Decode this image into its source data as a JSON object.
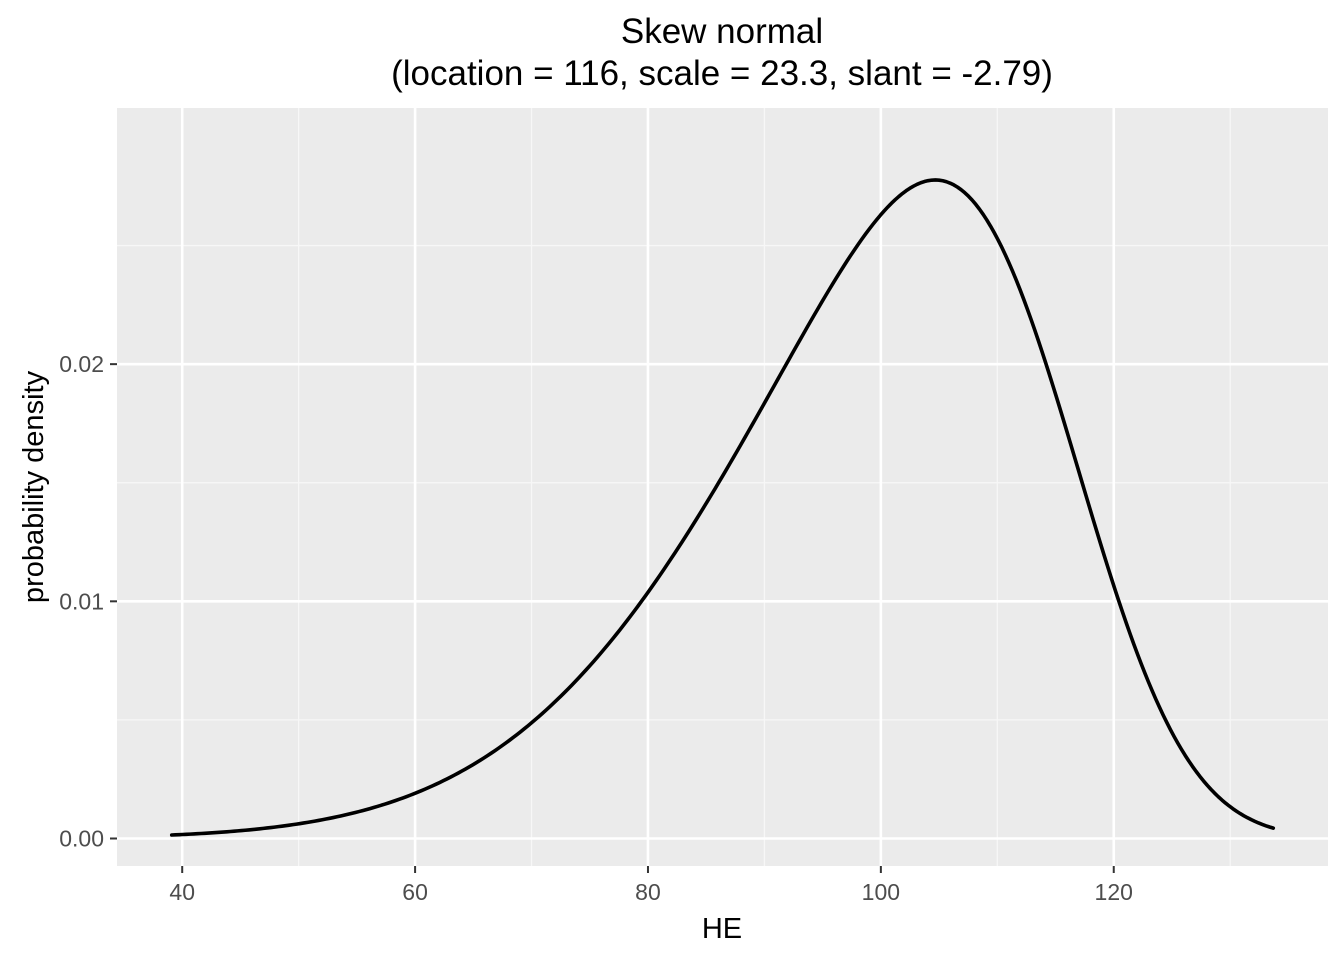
{
  "chart_data": {
    "type": "line",
    "title": "Skew normal",
    "subtitle": "(location = 116, scale = 23.3, slant = -2.79)",
    "xlabel": "HE",
    "ylabel": "probability density",
    "distribution": {
      "name": "skew normal",
      "location": 116,
      "scale": 23.3,
      "slant": -2.79
    },
    "x_range": [
      39.1,
      133.7
    ],
    "xlim": [
      34.4,
      138.4
    ],
    "ylim": [
      -0.00116,
      0.0308
    ],
    "x_ticks": [
      40,
      60,
      80,
      100,
      120
    ],
    "y_ticks": [
      0.0,
      0.01,
      0.02
    ],
    "x_tick_labels": [
      "40",
      "60",
      "80",
      "100",
      "120"
    ],
    "y_tick_labels": [
      "0.00",
      "0.01",
      "0.02"
    ],
    "series": [
      {
        "x": [
          39.1,
          45,
          50,
          55,
          60,
          65,
          70,
          75,
          80,
          85,
          90,
          95,
          100,
          104.4,
          108,
          112,
          115,
          118,
          120,
          123,
          126,
          129,
          131,
          133.7
        ],
        "y": [
          0.0002,
          0.0004,
          0.0006,
          0.0011,
          0.002,
          0.0033,
          0.0051,
          0.0077,
          0.0108,
          0.0146,
          0.0189,
          0.0233,
          0.0267,
          0.0278,
          0.0271,
          0.0239,
          0.0196,
          0.0138,
          0.0101,
          0.0055,
          0.0025,
          0.0011,
          0.0006,
          0.0004
        ],
        "color": "#000000"
      }
    ],
    "grid": true,
    "legend": "none",
    "colors": {
      "panel_background": "#ebebeb",
      "grid_major": "#ffffff",
      "grid_minor": "#f7f7f7",
      "line": "#000000",
      "tick_text": "#4d4d4d",
      "axis_ticks": "#333333"
    }
  }
}
